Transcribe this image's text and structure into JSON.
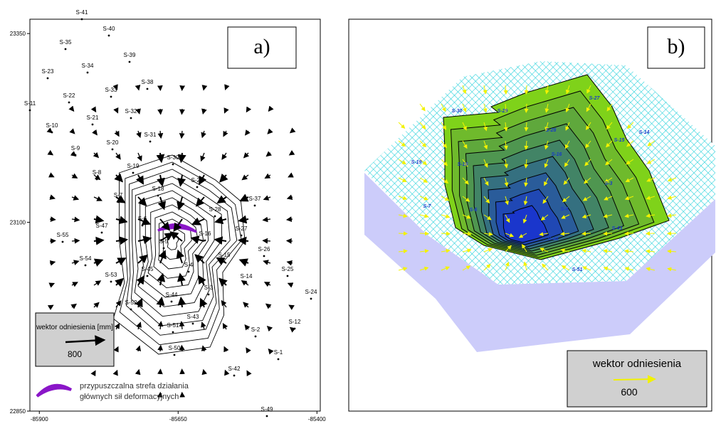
{
  "panel_a": {
    "label": "a)",
    "y_axis": {
      "ticks": [
        23350,
        23100,
        22850
      ],
      "lim": [
        22850,
        23369
      ]
    },
    "x_axis": {
      "ticks": [
        -85900,
        -85650,
        -85400
      ],
      "lim": [
        -85917,
        -85394
      ]
    },
    "stations": [
      "S-41",
      "S-40",
      "S-35",
      "S-39",
      "S-34",
      "S-23",
      "S-38",
      "S-33",
      "S-22",
      "S-11",
      "S-32",
      "S-21",
      "S-10",
      "S-31",
      "S-20",
      "S-9",
      "S-30",
      "S-19",
      "S-8",
      "S-29",
      "S-18",
      "S-7",
      "S-37",
      "S-28",
      "S-6",
      "S-47",
      "S-55",
      "S-27",
      "S-16",
      "S-5",
      "S-15",
      "S-26",
      "S-54",
      "S-4",
      "S-45",
      "S-53",
      "S-14",
      "S-25",
      "S-3",
      "S-44",
      "S-24",
      "S-52",
      "S-43",
      "S-51",
      "S-2",
      "S-12",
      "S-50",
      "S-1",
      "S-42",
      "S-49"
    ],
    "legend": {
      "title": "wektor odniesienia [mm]",
      "value": 800
    },
    "zone_note": [
      "przypuszczalna strefa działania",
      "głównych sił deformacyjnych"
    ]
  },
  "panel_b": {
    "label": "b)",
    "stations": [
      "S-30",
      "S-29",
      "S-27",
      "S-28",
      "S-15",
      "S-14",
      "S-19",
      "S-18",
      "S-16",
      "S-3",
      "S-7",
      "S-6",
      "S-4",
      "S-43",
      "S-44",
      "S-51"
    ],
    "legend": {
      "title": "wektor odniesienia",
      "value": 600
    }
  }
}
